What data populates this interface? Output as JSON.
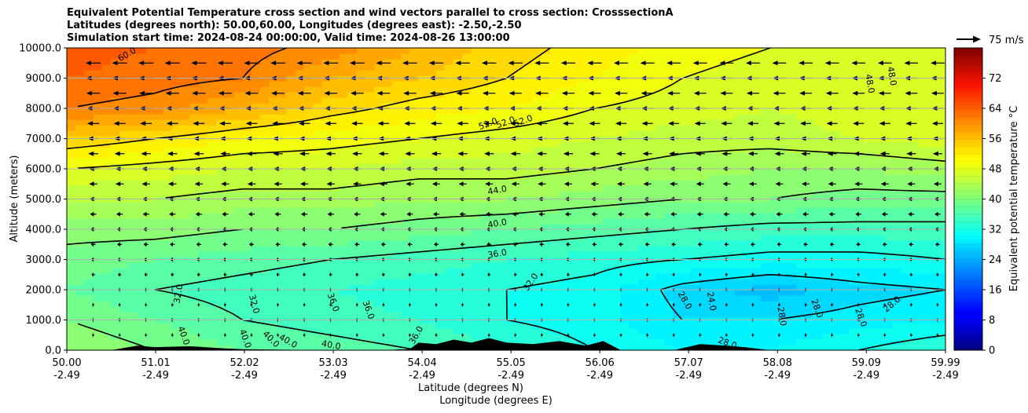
{
  "title_lines": [
    "Equivalent Potential Temperature cross section and wind vectors parallel to cross section: CrosssectionA",
    "Latitudes (degrees north): 50.00,60.00, Longitudes (degrees east): -2.50,-2.50",
    "Simulation start time: 2024-08-24 00:00:00, Valid time: 2024-08-26 13:00:00"
  ],
  "chart_data": {
    "type": "heatmap",
    "ylabel": "Altitude (meters)",
    "xlabel_lines": [
      "Latitude (degrees N)",
      "Longitude (degrees E)"
    ],
    "ylim": [
      0,
      10000
    ],
    "yticks": [
      "0.0",
      "1000.0",
      "2000.0",
      "3000.0",
      "4000.0",
      "5000.0",
      "6000.0",
      "7000.0",
      "8000.0",
      "9000.0",
      "10000.0"
    ],
    "xticks": [
      {
        "lat": "50.00",
        "lon": "-2.49"
      },
      {
        "lat": "51.01",
        "lon": "-2.49"
      },
      {
        "lat": "52.02",
        "lon": "-2.49"
      },
      {
        "lat": "53.03",
        "lon": "-2.49"
      },
      {
        "lat": "54.04",
        "lon": "-2.49"
      },
      {
        "lat": "55.05",
        "lon": "-2.49"
      },
      {
        "lat": "56.06",
        "lon": "-2.49"
      },
      {
        "lat": "57.07",
        "lon": "-2.49"
      },
      {
        "lat": "58.08",
        "lon": "-2.49"
      },
      {
        "lat": "59.09",
        "lon": "-2.49"
      },
      {
        "lat": "59.99",
        "lon": "-2.49"
      }
    ],
    "grid": "horizontal",
    "colorbar": {
      "label": "Equivalent potential temperature $^\\circ$C",
      "label_display": "Equivalent potential temperature °C",
      "range": [
        0,
        80
      ],
      "ticks": [
        "0",
        "8",
        "16",
        "24",
        "32",
        "40",
        "48",
        "56",
        "64",
        "72"
      ]
    },
    "quiver_key": {
      "label": "75 m/s",
      "value": 75
    },
    "contour_labels": [
      "60.0",
      "52.0",
      "52.0",
      "52.0",
      "48.0",
      "48.0",
      "44.0",
      "40.0",
      "36.0",
      "32.0",
      "32.0",
      "32.0",
      "36.0",
      "36.0",
      "36.0",
      "40.0",
      "40.0",
      "40.0",
      "40.0",
      "40.0",
      "28.0",
      "24.0",
      "28.0",
      "28.0",
      "28.0",
      "28.0",
      "28.0"
    ],
    "theta_e_profile": {
      "x_lat": [
        50.0,
        51.0,
        52.0,
        53.0,
        54.0,
        55.0,
        56.0,
        57.0,
        58.0,
        59.0,
        60.0
      ],
      "levels_z": [
        0,
        1000,
        2000,
        3000,
        4000,
        5000,
        6000,
        7000,
        8000,
        9000,
        10000
      ],
      "values": [
        [
          42,
          40,
          38,
          37,
          36,
          34,
          32,
          30,
          30,
          32,
          34
        ],
        [
          40,
          38,
          36,
          35,
          34,
          32,
          31,
          28,
          28,
          29,
          30
        ],
        [
          38,
          36,
          35,
          34,
          33,
          32,
          31,
          27,
          25,
          27,
          28
        ],
        [
          39,
          38,
          37,
          36,
          35,
          34,
          33,
          32,
          31,
          31,
          32
        ],
        [
          41,
          41,
          40,
          40,
          39,
          38,
          37,
          36,
          35,
          35,
          35
        ],
        [
          44,
          44,
          43,
          43,
          42,
          42,
          41,
          40,
          40,
          39,
          39
        ],
        [
          48,
          47,
          46,
          46,
          45,
          45,
          44,
          43,
          42,
          42,
          43
        ],
        [
          54,
          52,
          50,
          49,
          48,
          47,
          46,
          45,
          45,
          46,
          47
        ],
        [
          60,
          59,
          56,
          53,
          51,
          50,
          48,
          47,
          46,
          47,
          47
        ],
        [
          62,
          61,
          60,
          56,
          54,
          52,
          50,
          48,
          47,
          46,
          46
        ],
        [
          63,
          62,
          61,
          59,
          56,
          53,
          51,
          49,
          48,
          47,
          46
        ]
      ]
    },
    "terrain": {
      "x_lat": [
        50.0,
        50.5,
        50.8,
        51.0,
        51.4,
        51.8,
        52.0,
        53.0,
        53.6,
        53.9,
        54.0,
        54.2,
        54.4,
        54.6,
        54.8,
        55.0,
        55.3,
        55.6,
        55.9,
        56.1,
        56.3,
        56.9,
        57.2,
        57.5,
        57.7,
        58.0,
        60.0
      ],
      "z": [
        0,
        0,
        150,
        100,
        130,
        60,
        30,
        0,
        0,
        40,
        250,
        200,
        350,
        250,
        400,
        250,
        200,
        300,
        150,
        300,
        0,
        0,
        200,
        150,
        100,
        0,
        0
      ]
    }
  }
}
